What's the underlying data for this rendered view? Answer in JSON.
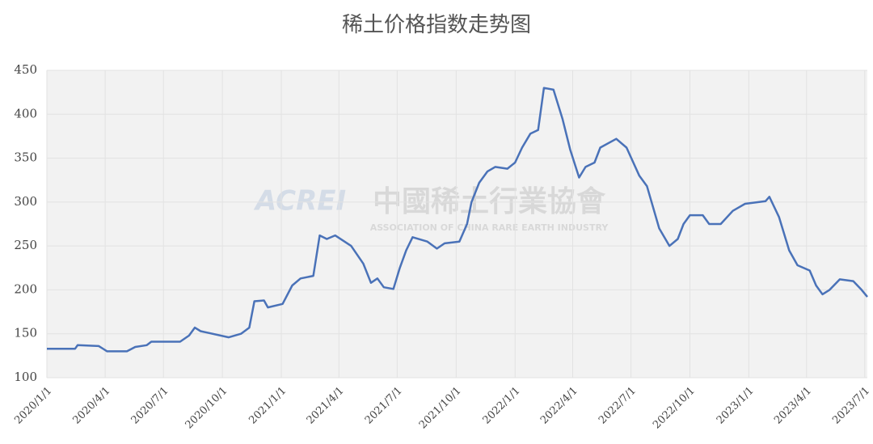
{
  "chart_data": {
    "type": "line",
    "title": "稀土价格指数走势图",
    "watermark": {
      "logo": "ACREI",
      "name": "中國稀土行業協會",
      "subtitle": "ASSOCIATION OF CHINA RARE EARTH INDUSTRY"
    },
    "x": [
      "2020/1/1",
      "2020/2/14",
      "2020/2/18",
      "2020/3/22",
      "2020/4/4",
      "2020/5/5",
      "2020/5/18",
      "2020/6/5",
      "2020/6/12",
      "2020/7/27",
      "2020/8/10",
      "2020/8/19",
      "2020/8/28",
      "2020/10/11",
      "2020/10/30",
      "2020/11/12",
      "2020/11/20",
      "2020/12/5",
      "2020/12/11",
      "2021/1/3",
      "2021/1/18",
      "2021/1/31",
      "2021/2/20",
      "2021/3/2",
      "2021/3/13",
      "2021/3/26",
      "2021/4/20",
      "2021/5/9",
      "2021/5/21",
      "2021/5/31",
      "2021/6/10",
      "2021/6/25",
      "2021/7/5",
      "2021/7/15",
      "2021/7/25",
      "2021/8/17",
      "2021/9/1",
      "2021/9/13",
      "2021/10/6",
      "2021/10/18",
      "2021/10/25",
      "2021/11/6",
      "2021/11/19",
      "2021/12/1",
      "2021/12/20",
      "2022/1/1",
      "2022/1/12",
      "2022/1/25",
      "2022/2/6",
      "2022/2/15",
      "2022/3/2",
      "2022/3/16",
      "2022/3/28",
      "2022/4/11",
      "2022/4/21",
      "2022/5/5",
      "2022/5/14",
      "2022/6/8",
      "2022/6/24",
      "2022/7/14",
      "2022/7/26",
      "2022/8/14",
      "2022/8/30",
      "2022/9/12",
      "2022/9/21",
      "2022/10/1",
      "2022/10/21",
      "2022/10/31",
      "2022/11/18",
      "2022/12/7",
      "2022/12/26",
      "2023/1/27",
      "2023/2/2",
      "2023/2/17",
      "2023/3/5",
      "2023/3/18",
      "2023/4/6",
      "2023/4/16",
      "2023/4/26",
      "2023/5/7",
      "2023/5/23",
      "2023/6/13",
      "2023/6/26",
      "2023/7/5"
    ],
    "series": [
      {
        "name": "稀土价格指数",
        "color": "#4a72b8",
        "values": [
          133,
          133,
          137,
          136,
          130,
          130,
          135,
          137,
          141,
          141,
          148,
          157,
          153,
          146,
          150,
          157,
          187,
          188,
          180,
          184,
          205,
          213,
          216,
          262,
          258,
          262,
          250,
          230,
          208,
          213,
          203,
          201,
          225,
          245,
          260,
          255,
          247,
          253,
          255,
          275,
          300,
          322,
          335,
          340,
          338,
          345,
          362,
          378,
          382,
          430,
          428,
          395,
          360,
          328,
          340,
          345,
          362,
          372,
          362,
          330,
          318,
          270,
          250,
          258,
          275,
          285,
          285,
          275,
          275,
          290,
          298,
          301,
          306,
          283,
          245,
          228,
          222,
          205,
          195,
          200,
          212,
          210,
          200,
          192
        ]
      }
    ],
    "xlim": [
      "2020/1/1",
      "2023/7/5"
    ],
    "xticks": [
      "2020/1/1",
      "2020/4/1",
      "2020/7/1",
      "2020/10/1",
      "2021/1/1",
      "2021/4/1",
      "2021/7/1",
      "2021/10/1",
      "2022/1/1",
      "2022/4/1",
      "2022/7/1",
      "2022/10/1",
      "2023/1/1",
      "2023/4/1",
      "2023/7/1"
    ],
    "ylim": [
      100,
      450
    ],
    "yticks": [
      100,
      150,
      200,
      250,
      300,
      350,
      400,
      450
    ],
    "grid": true
  }
}
